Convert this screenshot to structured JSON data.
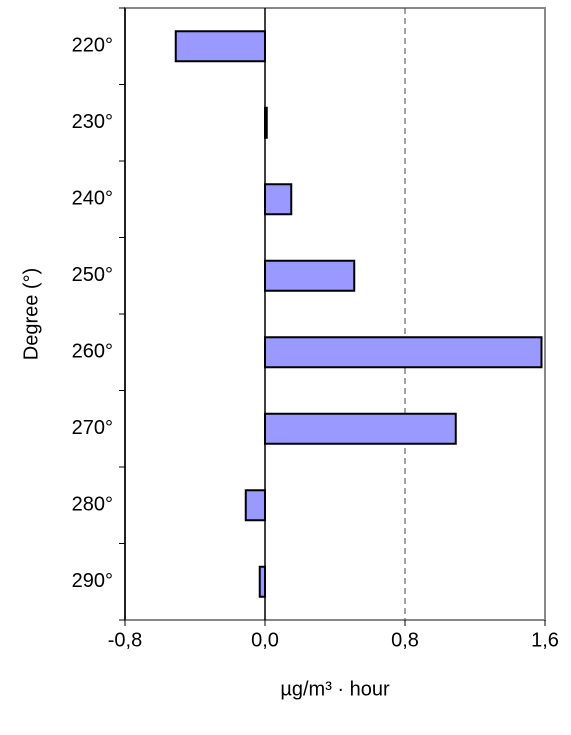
{
  "chart_data": {
    "type": "hbar",
    "categories": [
      "220°",
      "230°",
      "240°",
      "250°",
      "260°",
      "270°",
      "280°",
      "290°"
    ],
    "values": [
      -0.51,
      0.01,
      0.15,
      0.51,
      1.58,
      1.09,
      -0.11,
      -0.03
    ],
    "color": "#9999ff",
    "xlim": [
      -0.8,
      1.6
    ],
    "xticks": [
      {
        "value": -0.8,
        "label": "-0,8"
      },
      {
        "value": 0,
        "label": "0,0"
      },
      {
        "value": 0.8,
        "label": "0,8"
      },
      {
        "value": 1.6,
        "label": "1,6"
      }
    ],
    "reference_line": 0.8,
    "xlabel": "µg/m³ · hour",
    "ylabel": "Degree (°)"
  }
}
